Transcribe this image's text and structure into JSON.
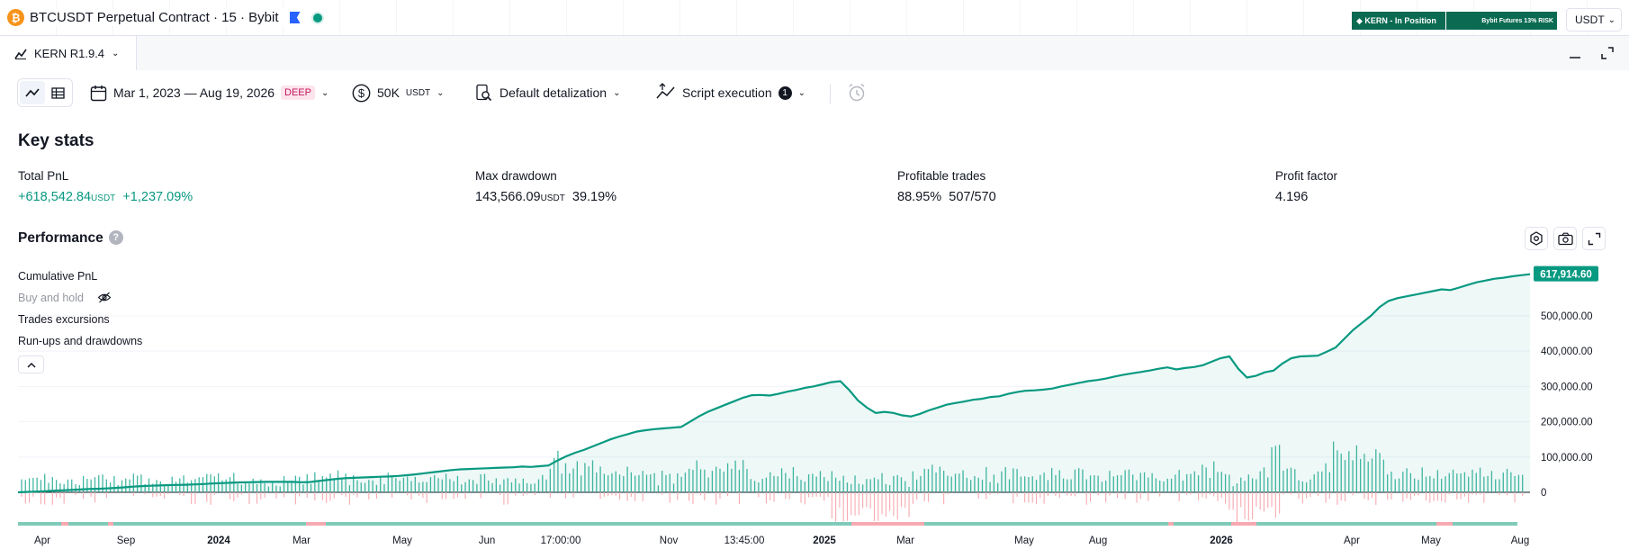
{
  "header": {
    "symbol_title": "BTCUSDT Perpetual Contract · 15 · Bybit",
    "kern_badge": "◆ KERN - In Position",
    "bybit_badge": "Bybit Futures 13% RISK",
    "currency": "USDT"
  },
  "panel": {
    "tab_label": "KERN R1.9.4"
  },
  "toolbar": {
    "date_range": "Mar 1, 2023 — Aug 19, 2026",
    "date_badge": "DEEP",
    "capital": "50K",
    "capital_unit": "USDT",
    "detalization": "Default detalization",
    "script_execution": "Script execution",
    "script_execution_count": "1"
  },
  "key_stats": {
    "title": "Key stats",
    "total_pnl": {
      "label": "Total PnL",
      "value": "+618,542.84",
      "unit": "USDT",
      "percent": "+1,237.09%"
    },
    "max_drawdown": {
      "label": "Max drawdown",
      "value": "143,566.09",
      "unit": "USDT",
      "percent": "39.19%"
    },
    "profitable_trades": {
      "label": "Profitable trades",
      "percent": "88.95%",
      "count": "507/570"
    },
    "profit_factor": {
      "label": "Profit factor",
      "value": "4.196"
    }
  },
  "performance": {
    "title": "Performance",
    "help": "?",
    "legend": {
      "cumulative_pnl": "Cumulative PnL",
      "buy_and_hold": "Buy and hold",
      "trades_excursions": "Trades excursions",
      "runups_drawdowns": "Run-ups and drawdowns"
    }
  },
  "colors": {
    "accent_green": "#089981",
    "loss_red": "#f23645",
    "badge_green": "#0b6b52"
  },
  "chart_data": {
    "type": "area",
    "last_value_label": "617,914.60",
    "y_ticks": [
      "0",
      "100,000.00",
      "200,000.00",
      "300,000.00",
      "400,000.00",
      "500,000.00"
    ],
    "y_tick_values": [
      0,
      100000,
      200000,
      300000,
      400000,
      500000
    ],
    "ylim": [
      -5000,
      640000
    ],
    "x_tick_labels": [
      "Apr",
      "Sep",
      "2024",
      "Mar",
      "May",
      "Jun",
      "17:00:00",
      "Nov",
      "13:45:00",
      "2025",
      "Mar",
      "May",
      "Aug",
      "2026",
      "Apr",
      "May",
      "Aug"
    ],
    "series": [
      {
        "values": [
          0,
          1000,
          2000,
          3000,
          4500,
          5500,
          7000,
          8000,
          9500,
          10000,
          11000,
          12500,
          14000,
          16000,
          17500,
          18500,
          19500,
          20500,
          21000,
          21500,
          22500,
          23500,
          25000,
          26000,
          27000,
          28000,
          28500,
          29000,
          29500,
          29500,
          29500,
          29500,
          28500,
          29000,
          32000,
          35000,
          38000,
          40000,
          41000,
          42000,
          43000,
          44000,
          45000,
          46500,
          48500,
          51000,
          54000,
          57000,
          60000,
          63000,
          65000,
          66000,
          67000,
          68000,
          69000,
          70000,
          71000,
          73000,
          72000,
          74000,
          76000,
          90000,
          102000,
          112000,
          120000,
          130000,
          140000,
          150000,
          158000,
          165000,
          172000,
          176000,
          179000,
          181000,
          183000,
          185000,
          200000,
          215000,
          228000,
          238000,
          248000,
          258000,
          268000,
          275000,
          276000,
          274000,
          279000,
          285000,
          290000,
          296000,
          300000,
          306000,
          312000,
          315000,
          290000,
          260000,
          240000,
          225000,
          228000,
          225000,
          218000,
          215000,
          222000,
          232000,
          240000,
          248000,
          253000,
          257000,
          262000,
          265000,
          270000,
          272000,
          279000,
          284000,
          288000,
          289000,
          291000,
          294000,
          300000,
          305000,
          310000,
          315000,
          318000,
          322000,
          328000,
          333000,
          337000,
          341000,
          345000,
          350000,
          354000,
          348000,
          352000,
          355000,
          360000,
          370000,
          380000,
          385000,
          350000,
          325000,
          330000,
          340000,
          345000,
          365000,
          380000,
          385000,
          386000,
          387000,
          398000,
          410000,
          435000,
          460000,
          480000,
          500000,
          525000,
          542000,
          550000,
          555000,
          560000,
          565000,
          570000,
          575000,
          573000,
          580000,
          588000,
          595000,
          600000,
          605000,
          608000,
          612000,
          615000,
          617914.6
        ]
      }
    ]
  }
}
